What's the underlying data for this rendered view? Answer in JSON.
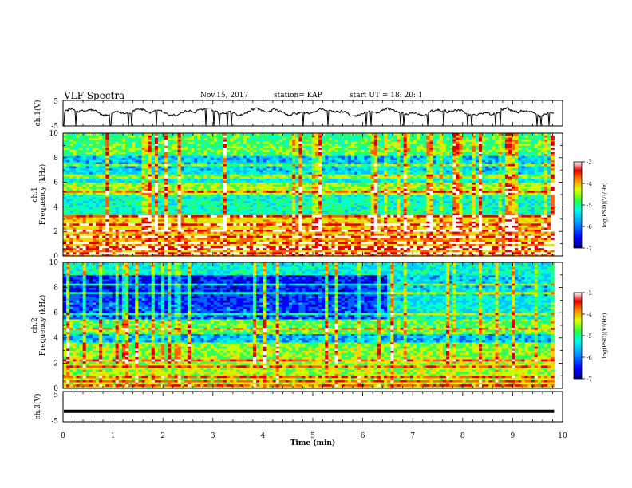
{
  "header": {
    "title": "VLF Spectra",
    "date": "Nov.15, 2017",
    "station": "station= KAP",
    "start": "start  UT  =   18: 20: 1"
  },
  "colors": {
    "colormap": [
      "#00007a",
      "#0000ff",
      "#0060ff",
      "#00c8ff",
      "#00ffd0",
      "#30ff60",
      "#c8ff00",
      "#ffd000",
      "#ff6000",
      "#e00000",
      "#ffffff"
    ]
  },
  "chart_data": [
    {
      "type": "line",
      "panel": "ch1-waveform",
      "ylabel": "ch.1(V)",
      "ylim": [
        -5,
        5
      ],
      "yticks": [
        "5",
        "-5"
      ],
      "xlim": [
        0,
        10
      ],
      "signal": "fluctuating waveform around ~0.5 V, amplitude ~±1.5 V, occasional spikes to -5 V"
    },
    {
      "type": "heatmap",
      "panel": "ch1-spectrogram",
      "ylabel": "ch.1\nFrequency (kHz)",
      "ylabel_line1": "ch.1",
      "ylabel_line2": "Frequency (kHz)",
      "ylim": [
        0,
        10
      ],
      "yticks": [
        "0",
        "2",
        "4",
        "6",
        "8",
        "10"
      ],
      "xlim": [
        0,
        10
      ],
      "colorbar": {
        "label": "log(PSD)(V²/Hz)",
        "range": [
          -7,
          -3
        ],
        "ticks": [
          "-3",
          "-4",
          "-5",
          "-6",
          "-7"
        ]
      }
    },
    {
      "type": "heatmap",
      "panel": "ch2-spectrogram",
      "ylabel": "ch.2\nFrequency (kHz)",
      "ylabel_line1": "ch.2",
      "ylabel_line2": "Frequency (kHz)",
      "ylim": [
        0,
        10
      ],
      "yticks": [
        "0",
        "2",
        "4",
        "6",
        "8",
        "10"
      ],
      "xlim": [
        0,
        10
      ],
      "colorbar": {
        "label": "log(PSD)(V²/Hz)",
        "range": [
          -7,
          -3
        ],
        "ticks": [
          "-3",
          "-4",
          "-5",
          "-6",
          "-7"
        ]
      }
    },
    {
      "type": "line",
      "panel": "ch3-waveform",
      "ylabel": "ch.3(V)",
      "ylim": [
        -5,
        5
      ],
      "yticks": [
        "5",
        "-5"
      ],
      "xlim": [
        0,
        10
      ],
      "constant_value": -1.5
    }
  ],
  "xaxis": {
    "label": "Time (min)",
    "ticks": [
      "0",
      "1",
      "2",
      "3",
      "4",
      "5",
      "6",
      "7",
      "8",
      "9",
      "10"
    ],
    "data_end": 9.83
  }
}
